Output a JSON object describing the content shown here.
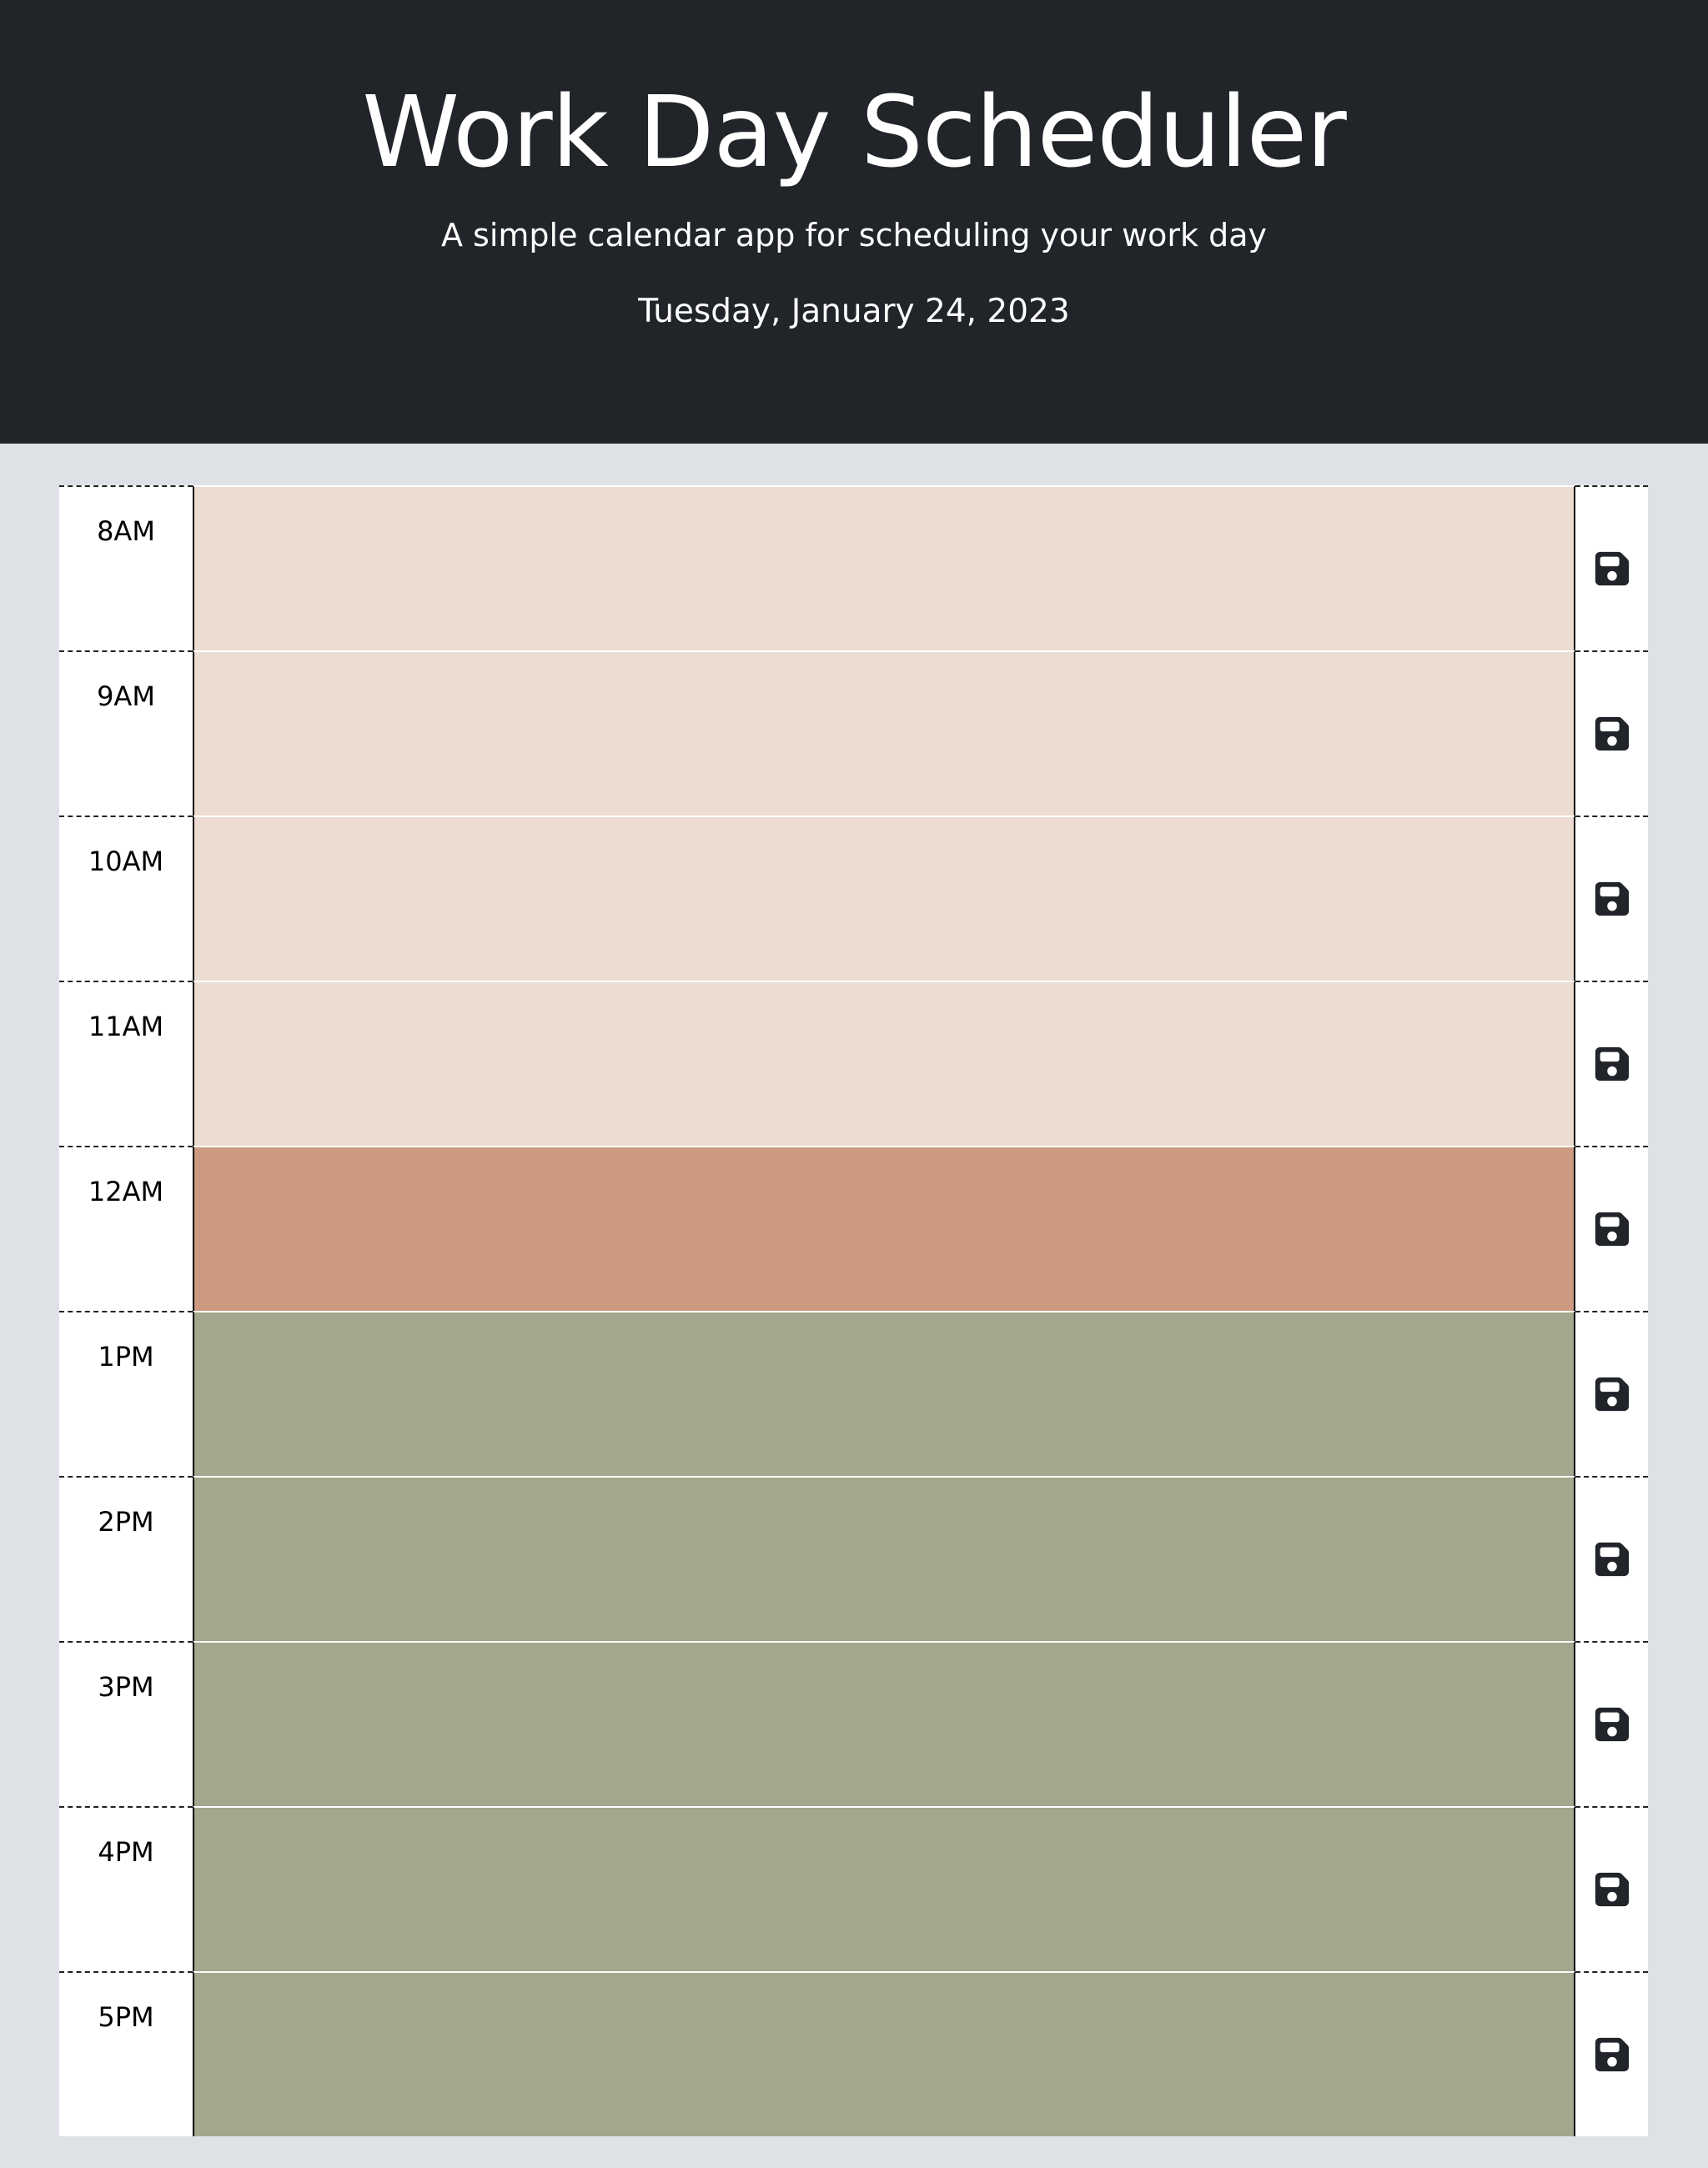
{
  "header": {
    "title": "Work Day Scheduler",
    "subtitle": "A simple calendar app for scheduling your work day",
    "date": "Tuesday, January 24, 2023"
  },
  "colors": {
    "header_bg": "#212429",
    "page_bg": "#dee1e5",
    "past": "#ecdcd2",
    "present": "#cb9a80",
    "future": "#a4a68d",
    "icon": "#212429"
  },
  "save_icon": "floppy-disk-icon",
  "rows": [
    {
      "hour": "8AM",
      "status": "past",
      "text": ""
    },
    {
      "hour": "9AM",
      "status": "past",
      "text": ""
    },
    {
      "hour": "10AM",
      "status": "past",
      "text": ""
    },
    {
      "hour": "11AM",
      "status": "past",
      "text": ""
    },
    {
      "hour": "12AM",
      "status": "present",
      "text": ""
    },
    {
      "hour": "1PM",
      "status": "future",
      "text": ""
    },
    {
      "hour": "2PM",
      "status": "future",
      "text": ""
    },
    {
      "hour": "3PM",
      "status": "future",
      "text": ""
    },
    {
      "hour": "4PM",
      "status": "future",
      "text": ""
    },
    {
      "hour": "5PM",
      "status": "future",
      "text": ""
    }
  ]
}
